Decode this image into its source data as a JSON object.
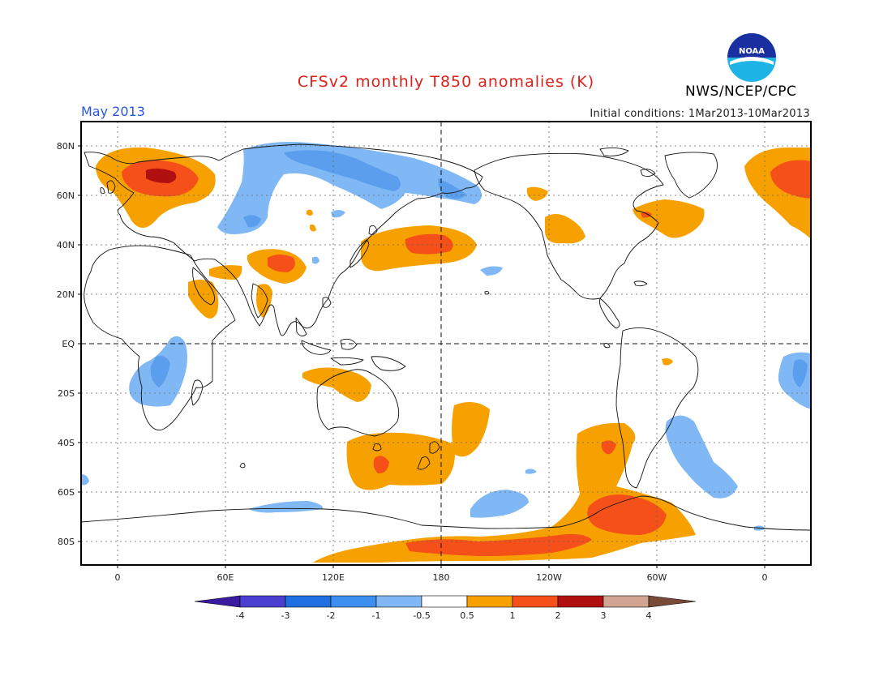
{
  "header": {
    "title": "CFSv2 monthly T850 anomalies (K)",
    "period": "May 2013",
    "initial_conditions": "Initial conditions: 1Mar2013-10Mar2013",
    "organization": "NWS/NCEP/CPC",
    "logo_text": "NOAA"
  },
  "map": {
    "projection": "equirectangular",
    "lat_ticks": [
      "80N",
      "60N",
      "40N",
      "20N",
      "EQ",
      "20S",
      "40S",
      "60S",
      "80S"
    ],
    "lon_ticks": [
      "0",
      "60E",
      "120E",
      "180",
      "120W",
      "60W",
      "0"
    ],
    "reference_lines": [
      "equator",
      "dateline"
    ]
  },
  "colorbar": {
    "labels": [
      "-4",
      "-3",
      "-2",
      "-1",
      "-0.5",
      "0.5",
      "1",
      "2",
      "3",
      "4"
    ],
    "colors": [
      "#3a1aa0",
      "#4b3fcf",
      "#1e6fe0",
      "#3c8fef",
      "#7fb8f5",
      "#ffffff",
      "#f7a100",
      "#f5501a",
      "#b01010",
      "#d1a591",
      "#7a4a38"
    ]
  },
  "colors": {
    "orange": "#f7a100",
    "red_orange": "#f5501a",
    "dark_red": "#b01010",
    "light_blue": "#7fb8f5",
    "blue": "#5a9eed",
    "title_red": "#e0201a",
    "period_blue": "#2a55e0"
  }
}
